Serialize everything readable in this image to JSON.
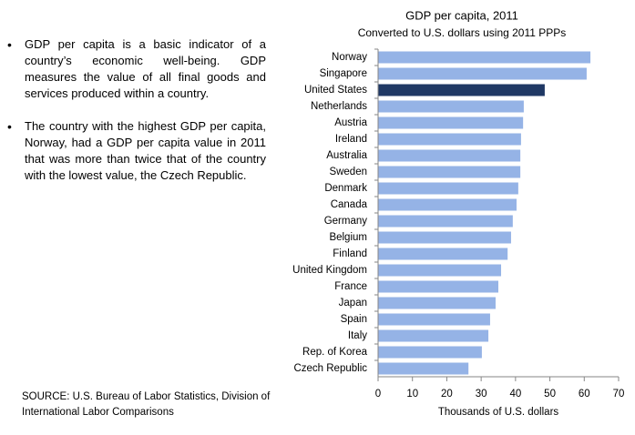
{
  "bullets": [
    "GDP per capita is a basic indicator of a country’s economic well-being. GDP measures the value of all final goods and services produced within a country.",
    "The country with the highest GDP per capita, Norway, had a GDP per capita value in 2011 that was more than twice that of the country with the lowest value, the Czech Republic."
  ],
  "source": "SOURCE: U.S. Bureau of Labor Statistics, Division of International Labor Comparisons",
  "chart_data": {
    "type": "bar",
    "orientation": "horizontal",
    "title": "GDP per capita, 2011",
    "subtitle": "Converted to U.S. dollars using 2011 PPPs",
    "x_label": "Thousands of U.S. dollars",
    "categories": [
      "Norway",
      "Singapore",
      "United States",
      "Netherlands",
      "Austria",
      "Ireland",
      "Australia",
      "Sweden",
      "Denmark",
      "Canada",
      "Germany",
      "Belgium",
      "Finland",
      "United Kingdom",
      "France",
      "Japan",
      "Spain",
      "Italy",
      "Rep. of Korea",
      "Czech Republic"
    ],
    "values": [
      61.8,
      60.7,
      48.5,
      42.4,
      42.2,
      41.6,
      41.4,
      41.4,
      40.8,
      40.3,
      39.2,
      38.7,
      37.7,
      35.8,
      35.0,
      34.2,
      32.6,
      32.1,
      30.2,
      26.3
    ],
    "colors": [
      "#95b3e6",
      "#95b3e6",
      "#1f3864",
      "#95b3e6",
      "#95b3e6",
      "#95b3e6",
      "#95b3e6",
      "#95b3e6",
      "#95b3e6",
      "#95b3e6",
      "#95b3e6",
      "#95b3e6",
      "#95b3e6",
      "#95b3e6",
      "#95b3e6",
      "#95b3e6",
      "#95b3e6",
      "#95b3e6",
      "#95b3e6",
      "#95b3e6"
    ],
    "xlim": [
      0,
      70
    ],
    "xticks": [
      0,
      10,
      20,
      30,
      40,
      50,
      60,
      70
    ],
    "grid": false
  }
}
